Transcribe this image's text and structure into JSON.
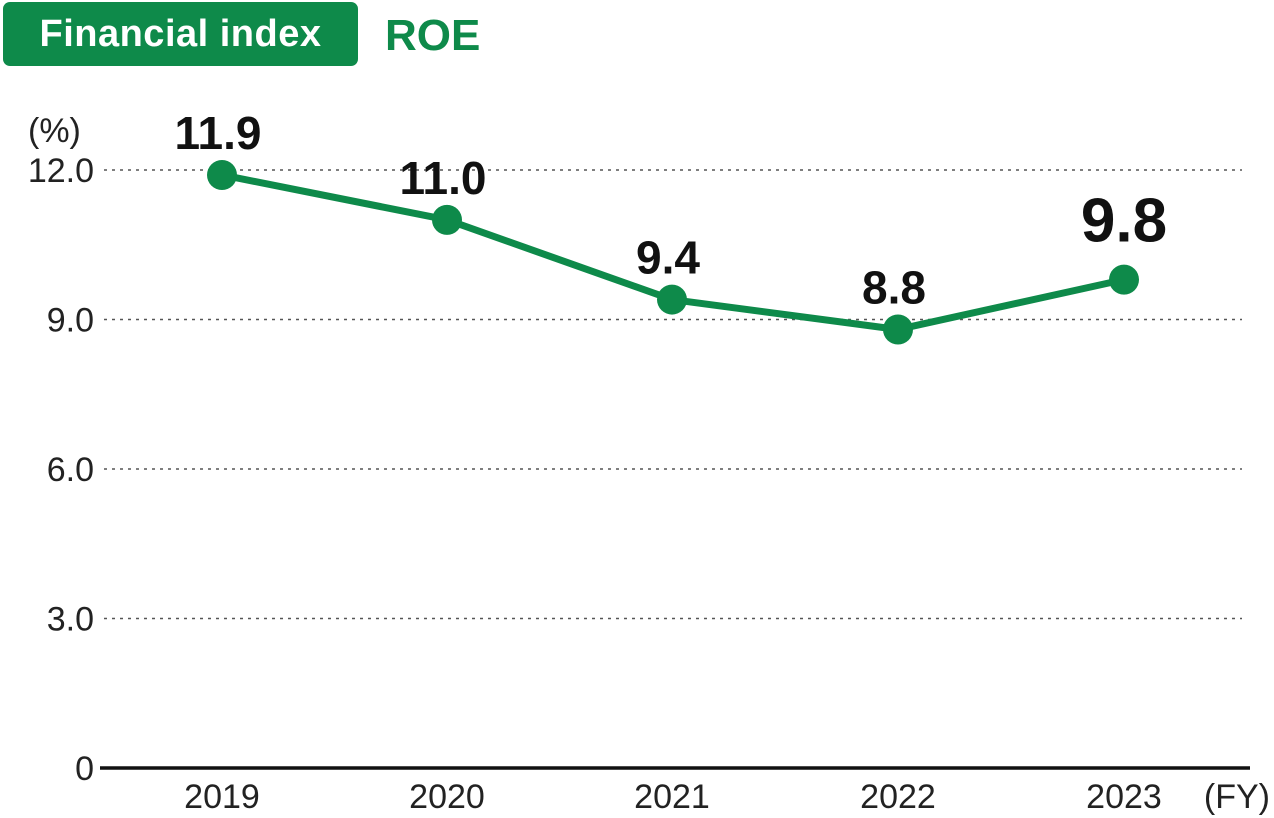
{
  "header": {
    "badge": "Financial index",
    "title": "ROE"
  },
  "colors": {
    "accent": "#0e8a4a",
    "highlight": "#0e8a4a",
    "label": "#111111",
    "grid": "#555555",
    "axis": "#111111"
  },
  "chart_data": {
    "type": "line",
    "title": "ROE",
    "xlabel": "(FY)",
    "ylabel": "(%)",
    "categories": [
      "2019",
      "2020",
      "2021",
      "2022",
      "2023"
    ],
    "series": [
      {
        "values": [
          11.9,
          11.0,
          9.4,
          8.8,
          9.8
        ]
      }
    ],
    "data_labels": [
      "11.9",
      "11.0",
      "9.4",
      "8.8",
      "9.8"
    ],
    "highlight_index": 4,
    "ylim": [
      0,
      12
    ],
    "yticks": [
      0,
      3,
      6,
      9,
      12
    ],
    "ytick_labels": [
      "0",
      "3.0",
      "6.0",
      "9.0",
      "12.0"
    ],
    "grid": true,
    "grid_style": "dotted",
    "legend": "none"
  }
}
